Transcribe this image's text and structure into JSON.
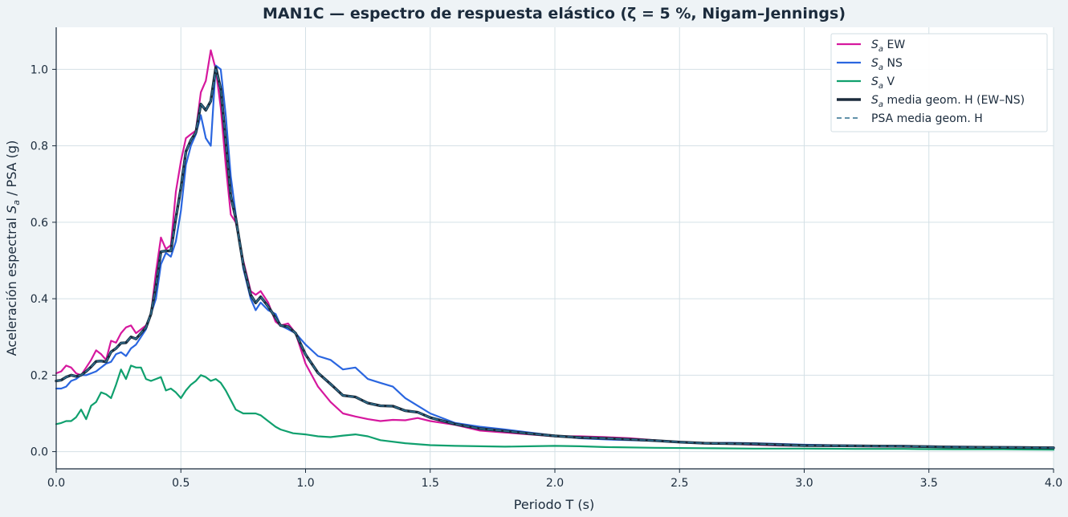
{
  "chart_data": {
    "type": "line",
    "title": "MAN1C — espectro de respuesta elástico (ζ = 5 %, Nigam–Jennings)",
    "xlabel": "Periodo T (s)",
    "ylabel": "Aceleración espectral Sa / PSA (g)",
    "xlim": [
      0,
      4.0
    ],
    "ylim": [
      -0.045,
      1.11
    ],
    "xticks": [
      0.0,
      0.5,
      1.0,
      1.5,
      2.0,
      2.5,
      3.0,
      3.5,
      4.0
    ],
    "xtick_labels": [
      "0.0",
      "0.5",
      "1.0",
      "1.5",
      "2.0",
      "2.5",
      "3.0",
      "3.5",
      "4.0"
    ],
    "yticks": [
      0.0,
      0.2,
      0.4,
      0.6,
      0.8,
      1.0
    ],
    "ytick_labels": [
      "0.0",
      "0.2",
      "0.4",
      "0.6",
      "0.8",
      "1.0"
    ],
    "grid": true,
    "legend_position": "top-right",
    "series": [
      {
        "name": "Sa EW",
        "name_var": "S",
        "name_sub": "a",
        "name_rest": " EW",
        "color": "#d6189e",
        "style": "solid",
        "x": [
          0.0,
          0.02,
          0.04,
          0.06,
          0.08,
          0.1,
          0.12,
          0.14,
          0.16,
          0.18,
          0.2,
          0.22,
          0.24,
          0.26,
          0.28,
          0.3,
          0.32,
          0.34,
          0.36,
          0.38,
          0.4,
          0.42,
          0.44,
          0.46,
          0.48,
          0.5,
          0.52,
          0.54,
          0.56,
          0.58,
          0.6,
          0.62,
          0.64,
          0.66,
          0.68,
          0.7,
          0.72,
          0.75,
          0.78,
          0.8,
          0.82,
          0.85,
          0.88,
          0.9,
          0.93,
          0.96,
          1.0,
          1.05,
          1.1,
          1.15,
          1.2,
          1.25,
          1.3,
          1.35,
          1.4,
          1.45,
          1.5,
          1.6,
          1.7,
          1.8,
          1.9,
          2.0,
          2.1,
          2.2,
          2.3,
          2.4,
          2.5,
          2.6,
          2.7,
          2.8,
          2.9,
          3.0,
          3.2,
          3.4,
          3.6,
          3.8,
          4.0
        ],
        "y": [
          0.205,
          0.21,
          0.225,
          0.22,
          0.205,
          0.2,
          0.22,
          0.24,
          0.265,
          0.255,
          0.24,
          0.29,
          0.285,
          0.31,
          0.325,
          0.33,
          0.31,
          0.32,
          0.33,
          0.36,
          0.47,
          0.56,
          0.53,
          0.54,
          0.68,
          0.76,
          0.82,
          0.83,
          0.84,
          0.94,
          0.97,
          1.05,
          1.0,
          0.9,
          0.75,
          0.62,
          0.6,
          0.5,
          0.42,
          0.41,
          0.42,
          0.39,
          0.34,
          0.33,
          0.335,
          0.31,
          0.23,
          0.17,
          0.13,
          0.1,
          0.092,
          0.085,
          0.08,
          0.083,
          0.082,
          0.088,
          0.08,
          0.07,
          0.055,
          0.05,
          0.045,
          0.04,
          0.04,
          0.038,
          0.035,
          0.03,
          0.025,
          0.022,
          0.02,
          0.018,
          0.016,
          0.015,
          0.014,
          0.013,
          0.012,
          0.011,
          0.01
        ]
      },
      {
        "name": "Sa NS",
        "name_var": "S",
        "name_sub": "a",
        "name_rest": " NS",
        "color": "#2a66e0",
        "style": "solid",
        "x": [
          0.0,
          0.02,
          0.04,
          0.06,
          0.08,
          0.1,
          0.12,
          0.14,
          0.16,
          0.18,
          0.2,
          0.22,
          0.24,
          0.26,
          0.28,
          0.3,
          0.32,
          0.34,
          0.36,
          0.38,
          0.4,
          0.42,
          0.44,
          0.46,
          0.48,
          0.5,
          0.52,
          0.54,
          0.56,
          0.58,
          0.6,
          0.62,
          0.64,
          0.66,
          0.68,
          0.7,
          0.72,
          0.75,
          0.78,
          0.8,
          0.82,
          0.85,
          0.88,
          0.9,
          0.93,
          0.96,
          1.0,
          1.05,
          1.1,
          1.15,
          1.2,
          1.25,
          1.3,
          1.35,
          1.4,
          1.45,
          1.5,
          1.6,
          1.7,
          1.8,
          1.9,
          2.0,
          2.1,
          2.2,
          2.3,
          2.4,
          2.5,
          2.6,
          2.7,
          2.8,
          2.9,
          3.0,
          3.2,
          3.4,
          3.6,
          3.8,
          4.0
        ],
        "y": [
          0.165,
          0.165,
          0.17,
          0.185,
          0.19,
          0.2,
          0.2,
          0.205,
          0.21,
          0.22,
          0.23,
          0.235,
          0.255,
          0.26,
          0.25,
          0.27,
          0.28,
          0.3,
          0.32,
          0.36,
          0.4,
          0.49,
          0.52,
          0.51,
          0.55,
          0.63,
          0.75,
          0.8,
          0.83,
          0.88,
          0.82,
          0.8,
          1.01,
          1.0,
          0.88,
          0.72,
          0.62,
          0.48,
          0.4,
          0.37,
          0.39,
          0.37,
          0.36,
          0.33,
          0.32,
          0.31,
          0.28,
          0.25,
          0.24,
          0.215,
          0.22,
          0.19,
          0.18,
          0.17,
          0.14,
          0.12,
          0.1,
          0.075,
          0.065,
          0.058,
          0.05,
          0.042,
          0.035,
          0.032,
          0.03,
          0.028,
          0.025,
          0.022,
          0.023,
          0.022,
          0.02,
          0.018,
          0.016,
          0.015,
          0.013,
          0.012,
          0.011
        ]
      },
      {
        "name": "Sa V",
        "name_var": "S",
        "name_sub": "a",
        "name_rest": " V",
        "color": "#10a06e",
        "style": "solid",
        "x": [
          0.0,
          0.02,
          0.04,
          0.06,
          0.08,
          0.1,
          0.12,
          0.14,
          0.16,
          0.18,
          0.2,
          0.22,
          0.24,
          0.26,
          0.28,
          0.3,
          0.32,
          0.34,
          0.36,
          0.38,
          0.4,
          0.42,
          0.44,
          0.46,
          0.48,
          0.5,
          0.52,
          0.54,
          0.56,
          0.58,
          0.6,
          0.62,
          0.64,
          0.66,
          0.68,
          0.7,
          0.72,
          0.75,
          0.78,
          0.8,
          0.82,
          0.85,
          0.88,
          0.9,
          0.95,
          1.0,
          1.05,
          1.1,
          1.15,
          1.2,
          1.25,
          1.3,
          1.4,
          1.5,
          1.6,
          1.7,
          1.8,
          1.9,
          2.0,
          2.1,
          2.2,
          2.4,
          2.6,
          2.8,
          3.0,
          3.2,
          3.4,
          3.6,
          3.8,
          4.0
        ],
        "y": [
          0.072,
          0.075,
          0.08,
          0.08,
          0.09,
          0.11,
          0.085,
          0.12,
          0.13,
          0.155,
          0.15,
          0.14,
          0.175,
          0.215,
          0.19,
          0.225,
          0.22,
          0.22,
          0.19,
          0.185,
          0.19,
          0.195,
          0.16,
          0.165,
          0.155,
          0.14,
          0.16,
          0.175,
          0.185,
          0.2,
          0.195,
          0.185,
          0.19,
          0.18,
          0.16,
          0.135,
          0.11,
          0.1,
          0.1,
          0.1,
          0.095,
          0.08,
          0.065,
          0.058,
          0.048,
          0.045,
          0.04,
          0.038,
          0.042,
          0.045,
          0.04,
          0.03,
          0.022,
          0.017,
          0.015,
          0.014,
          0.013,
          0.014,
          0.015,
          0.014,
          0.012,
          0.01,
          0.009,
          0.008,
          0.008,
          0.007,
          0.007,
          0.006,
          0.006,
          0.005
        ]
      },
      {
        "name": "Sa media geom. H (EW–NS)",
        "name_var": "S",
        "name_sub": "a",
        "name_rest": " media geom. H (EW–NS)",
        "color": "#1b2b3c",
        "style": "solid-thick",
        "x": [
          0.0,
          0.02,
          0.04,
          0.06,
          0.08,
          0.1,
          0.12,
          0.14,
          0.16,
          0.18,
          0.2,
          0.22,
          0.24,
          0.26,
          0.28,
          0.3,
          0.32,
          0.34,
          0.36,
          0.38,
          0.4,
          0.42,
          0.44,
          0.46,
          0.48,
          0.5,
          0.52,
          0.54,
          0.56,
          0.58,
          0.6,
          0.62,
          0.64,
          0.66,
          0.68,
          0.7,
          0.72,
          0.75,
          0.78,
          0.8,
          0.82,
          0.85,
          0.88,
          0.9,
          0.93,
          0.96,
          1.0,
          1.05,
          1.1,
          1.15,
          1.2,
          1.25,
          1.3,
          1.35,
          1.4,
          1.45,
          1.5,
          1.6,
          1.7,
          1.8,
          1.9,
          2.0,
          2.1,
          2.2,
          2.3,
          2.4,
          2.5,
          2.6,
          2.7,
          2.8,
          2.9,
          3.0,
          3.2,
          3.4,
          3.6,
          3.8,
          4.0
        ],
        "y": [
          0.185,
          0.187,
          0.195,
          0.2,
          0.197,
          0.2,
          0.21,
          0.222,
          0.236,
          0.237,
          0.235,
          0.261,
          0.27,
          0.284,
          0.285,
          0.3,
          0.295,
          0.31,
          0.325,
          0.36,
          0.434,
          0.523,
          0.525,
          0.525,
          0.611,
          0.69,
          0.785,
          0.815,
          0.835,
          0.909,
          0.893,
          0.917,
          1.005,
          0.949,
          0.812,
          0.668,
          0.61,
          0.49,
          0.41,
          0.389,
          0.405,
          0.38,
          0.35,
          0.33,
          0.327,
          0.31,
          0.254,
          0.206,
          0.177,
          0.147,
          0.143,
          0.127,
          0.12,
          0.119,
          0.107,
          0.103,
          0.089,
          0.072,
          0.06,
          0.054,
          0.047,
          0.041,
          0.037,
          0.035,
          0.032,
          0.029,
          0.025,
          0.022,
          0.021,
          0.02,
          0.018,
          0.016,
          0.015,
          0.014,
          0.012,
          0.011,
          0.01
        ]
      },
      {
        "name": "PSA media geom. H",
        "color": "#2f6f8e",
        "style": "dashed",
        "x": [
          0.0,
          0.02,
          0.04,
          0.06,
          0.08,
          0.1,
          0.12,
          0.14,
          0.16,
          0.18,
          0.2,
          0.22,
          0.24,
          0.26,
          0.28,
          0.3,
          0.32,
          0.34,
          0.36,
          0.38,
          0.4,
          0.42,
          0.44,
          0.46,
          0.48,
          0.5,
          0.52,
          0.54,
          0.56,
          0.58,
          0.6,
          0.62,
          0.64,
          0.66,
          0.68,
          0.7,
          0.72,
          0.75,
          0.78,
          0.8,
          0.82,
          0.85,
          0.88,
          0.9,
          0.93,
          0.96,
          1.0,
          1.05,
          1.1,
          1.15,
          1.2,
          1.25,
          1.3,
          1.35,
          1.4,
          1.45,
          1.5,
          1.6,
          1.7,
          1.8,
          1.9,
          2.0,
          2.1,
          2.2,
          2.3,
          2.4,
          2.5,
          2.6,
          2.7,
          2.8,
          2.9,
          3.0,
          3.2,
          3.4,
          3.6,
          3.8,
          4.0
        ],
        "y": [
          0.185,
          0.187,
          0.195,
          0.2,
          0.197,
          0.2,
          0.21,
          0.222,
          0.236,
          0.237,
          0.235,
          0.261,
          0.27,
          0.284,
          0.285,
          0.3,
          0.295,
          0.31,
          0.325,
          0.36,
          0.434,
          0.523,
          0.525,
          0.525,
          0.611,
          0.69,
          0.785,
          0.815,
          0.835,
          0.909,
          0.893,
          0.917,
          1.0,
          0.949,
          0.812,
          0.668,
          0.61,
          0.49,
          0.41,
          0.389,
          0.405,
          0.38,
          0.35,
          0.33,
          0.327,
          0.31,
          0.254,
          0.206,
          0.177,
          0.147,
          0.143,
          0.127,
          0.12,
          0.119,
          0.107,
          0.103,
          0.089,
          0.072,
          0.06,
          0.054,
          0.047,
          0.041,
          0.037,
          0.035,
          0.032,
          0.029,
          0.025,
          0.022,
          0.021,
          0.02,
          0.018,
          0.016,
          0.015,
          0.014,
          0.012,
          0.011,
          0.01
        ]
      }
    ]
  }
}
